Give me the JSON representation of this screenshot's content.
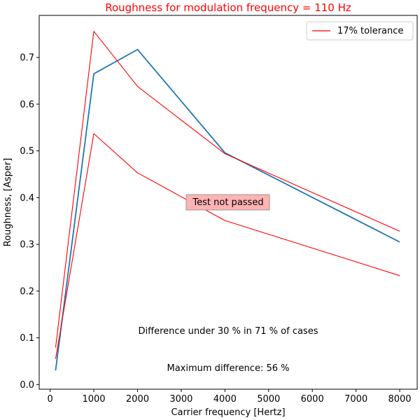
{
  "chart_data": {
    "type": "line",
    "title": "Roughness for modulation frequency = 110 Hz",
    "xlabel": "Carrier frequency [Hertz]",
    "ylabel": "Roughness, [Asper]",
    "xlim": [
      -250,
      8400
    ],
    "ylim": [
      -0.01,
      0.79
    ],
    "xticks": [
      0,
      1000,
      2000,
      3000,
      4000,
      5000,
      6000,
      7000,
      8000
    ],
    "yticks": [
      0.0,
      0.1,
      0.2,
      0.3,
      0.4,
      0.5,
      0.6,
      0.7
    ],
    "grid": false,
    "legend_position": "top-right",
    "series": [
      {
        "key": "measured",
        "color": "#1f77b4",
        "x": [
          125,
          1000,
          2000,
          4000,
          8000
        ],
        "y": [
          0.03,
          0.665,
          0.717,
          0.496,
          0.305
        ]
      },
      {
        "key": "upper",
        "name": "17% tolerance",
        "color": "#ff0000",
        "x": [
          125,
          1000,
          2000,
          4000,
          8000
        ],
        "y": [
          0.079,
          0.756,
          0.638,
          0.494,
          0.328
        ]
      },
      {
        "key": "lower",
        "color": "#ff0000",
        "x": [
          125,
          1000,
          2000,
          4000,
          8000
        ],
        "y": [
          0.055,
          0.537,
          0.453,
          0.351,
          0.233
        ]
      }
    ],
    "annotations": {
      "status": "Test not passed",
      "difference": "Difference under 30 % in 71 % of cases",
      "maximum": "Maximum difference: 56 %"
    },
    "title_color": "#ff0000",
    "status_box_color": "#ffb3b3"
  }
}
